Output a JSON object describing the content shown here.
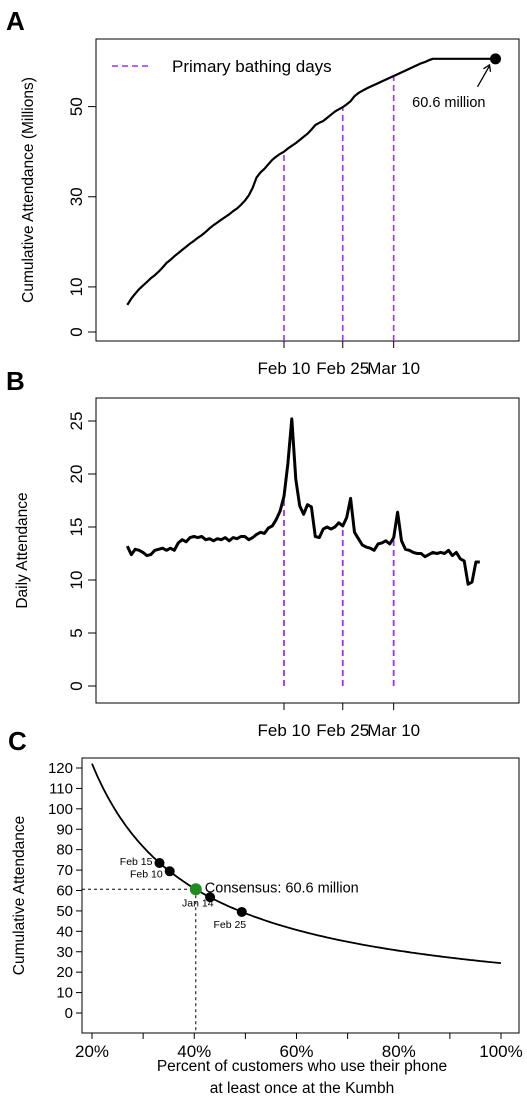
{
  "chart_data": [
    {
      "panel": "A",
      "type": "line",
      "ylabel": "Cumulative Attendance (Millions)",
      "yticks": [
        "0",
        "10",
        "30",
        "50"
      ],
      "ytick_values": [
        0,
        10,
        30,
        50
      ],
      "ylim": [
        -2,
        65
      ],
      "xticks": [
        "Feb 10",
        "Feb 25",
        "Mar 10"
      ],
      "xtick_days": [
        40,
        55,
        68
      ],
      "legend": {
        "label": "Primary bathing days",
        "position": "top-left"
      },
      "annotation": {
        "text": "60.6 million",
        "day": 94,
        "value": 60.6
      },
      "series": [
        {
          "x": [
            0,
            1,
            2,
            3,
            4,
            5,
            6,
            7,
            8,
            9,
            10,
            11,
            12,
            13,
            14,
            15,
            16,
            17,
            18,
            19,
            20,
            21,
            22,
            23,
            24,
            25,
            26,
            27,
            28,
            29,
            30,
            31,
            32,
            33,
            34,
            35,
            36,
            37,
            38,
            39,
            40,
            41,
            42,
            43,
            44,
            45,
            46,
            47,
            48,
            49,
            50,
            51,
            52,
            53,
            54,
            55,
            56,
            57,
            58,
            59,
            60,
            61,
            62,
            63,
            64,
            65,
            66,
            67,
            68,
            69,
            70,
            71,
            72,
            73,
            74,
            75,
            76,
            77,
            78,
            79,
            80,
            81,
            82,
            83,
            84,
            85,
            86,
            87,
            88,
            89,
            90,
            91,
            92,
            93,
            94
          ],
          "y": [
            6.0,
            7.4,
            8.5,
            9.5,
            10.3,
            11.1,
            11.9,
            12.6,
            13.4,
            14.3,
            15.3,
            16.0,
            16.8,
            17.5,
            18.2,
            18.9,
            19.6,
            20.2,
            20.9,
            21.5,
            22.2,
            23.0,
            23.7,
            24.3,
            24.9,
            25.5,
            26.1,
            26.8,
            27.4,
            28.2,
            29.1,
            30.3,
            32.0,
            34.3,
            35.4,
            36.2,
            37.2,
            38.2,
            38.9,
            39.5,
            40.0,
            40.7,
            41.3,
            41.9,
            42.6,
            43.3,
            44.0,
            44.9,
            45.9,
            46.4,
            46.8,
            47.5,
            48.2,
            48.9,
            49.4,
            49.9,
            50.5,
            51.2,
            52.3,
            53.0,
            53.5,
            54.0,
            54.4,
            54.8,
            55.2,
            55.6,
            56.0,
            56.4,
            56.8,
            57.2,
            57.6,
            58.0,
            58.4,
            58.8,
            59.2,
            59.6,
            59.9,
            60.3,
            60.6,
            60.6,
            60.6,
            60.6,
            60.6,
            60.6,
            60.6,
            60.6,
            60.6,
            60.6,
            60.6,
            60.6,
            60.6,
            60.6,
            60.6,
            60.6,
            60.6
          ]
        }
      ]
    },
    {
      "panel": "B",
      "type": "line",
      "ylabel": "Daily Attendance",
      "yticks": [
        "0",
        "5",
        "10",
        "15",
        "20",
        "25"
      ],
      "ytick_values": [
        0,
        5,
        10,
        15,
        20,
        25
      ],
      "ylim": [
        -0.5,
        27.5
      ],
      "xticks": [
        "Feb 10",
        "Feb 25",
        "Mar 10"
      ],
      "xtick_days": [
        40,
        55,
        68
      ],
      "series": [
        {
          "x": [
            0,
            1,
            2,
            3,
            4,
            5,
            6,
            7,
            8,
            9,
            10,
            11,
            12,
            13,
            14,
            15,
            16,
            17,
            18,
            19,
            20,
            21,
            22,
            23,
            24,
            25,
            26,
            27,
            28,
            29,
            30,
            31,
            32,
            33,
            34,
            35,
            36,
            37,
            38,
            39,
            40,
            41,
            42,
            43,
            44,
            45,
            46,
            47,
            48,
            49,
            50,
            51,
            52,
            53,
            54,
            55,
            56,
            57,
            58,
            59,
            60,
            61,
            62,
            63,
            64,
            65,
            66,
            67,
            68,
            69,
            70,
            71,
            72,
            73,
            74,
            75,
            76,
            77,
            78,
            79,
            80,
            81,
            82,
            83,
            84,
            85,
            86,
            87,
            88,
            89,
            90
          ],
          "y": [
            13.2,
            12.4,
            12.9,
            12.8,
            12.6,
            12.3,
            12.4,
            12.8,
            12.9,
            13.0,
            12.8,
            13.0,
            12.8,
            13.5,
            13.8,
            13.6,
            14.0,
            14.1,
            14.0,
            14.1,
            13.8,
            13.9,
            13.7,
            13.9,
            13.8,
            14.0,
            13.7,
            14.0,
            13.9,
            14.1,
            14.1,
            13.8,
            14.0,
            14.3,
            14.5,
            14.4,
            14.9,
            15.1,
            15.7,
            16.5,
            17.9,
            21.0,
            25.2,
            19.5,
            17.0,
            16.2,
            17.1,
            16.9,
            14.1,
            14.0,
            14.8,
            15.0,
            14.8,
            15.0,
            15.4,
            15.1,
            15.9,
            17.7,
            14.5,
            13.9,
            13.3,
            13.1,
            13.0,
            12.8,
            13.4,
            13.5,
            13.7,
            13.4,
            14.0,
            16.4,
            13.7,
            12.9,
            12.8,
            12.6,
            12.5,
            12.5,
            12.2,
            12.4,
            12.6,
            12.5,
            12.6,
            12.5,
            12.8,
            12.3,
            12.6,
            12.0,
            11.8,
            9.6,
            9.8,
            11.7,
            11.7
          ]
        }
      ]
    },
    {
      "panel": "C",
      "type": "line",
      "xlabel": "Percent of customers who use their phone at least once at the Kumbh",
      "xlabel_lines": [
        "Percent of customers who use their phone",
        "at least once at the Kumbh"
      ],
      "ylabel": "Cumulative Attendance",
      "xticks": [
        "20%",
        "40%",
        "60%",
        "80%",
        "100%"
      ],
      "xtick_values": [
        20,
        40,
        60,
        80,
        100
      ],
      "yticks": [
        "0",
        "10",
        "20",
        "30",
        "40",
        "50",
        "60",
        "70",
        "80",
        "90",
        "100",
        "110",
        "120"
      ],
      "ytick_values": [
        0,
        10,
        20,
        30,
        40,
        50,
        60,
        70,
        80,
        90,
        100,
        110,
        120
      ],
      "xlim": [
        18,
        102
      ],
      "ylim": [
        -2,
        124
      ],
      "curve": {
        "x_from": 20,
        "x_to": 100,
        "constant": 2442
      },
      "points": [
        {
          "label": "Feb 15",
          "x": 33.2,
          "y": 73.5,
          "color": "#000000"
        },
        {
          "label": "Feb 10",
          "x": 35.2,
          "y": 69.4,
          "color": "#000000"
        },
        {
          "label": "Jan 14",
          "x": 40.3,
          "y": 60.6,
          "color": "#228B22"
        },
        {
          "label": "",
          "x": 43.1,
          "y": 56.7,
          "color": "#000000"
        },
        {
          "label": "Feb 25",
          "x": 49.3,
          "y": 49.5,
          "color": "#000000"
        }
      ],
      "annotation": {
        "text": "Consensus: 60.6 million",
        "x": 40.3,
        "y": 60.6
      }
    }
  ],
  "panels": {
    "a": "A",
    "b": "B",
    "c": "C"
  },
  "colors": {
    "line": "#000000",
    "bathing_days": "#9B30FF",
    "consensus": "#228B22"
  }
}
